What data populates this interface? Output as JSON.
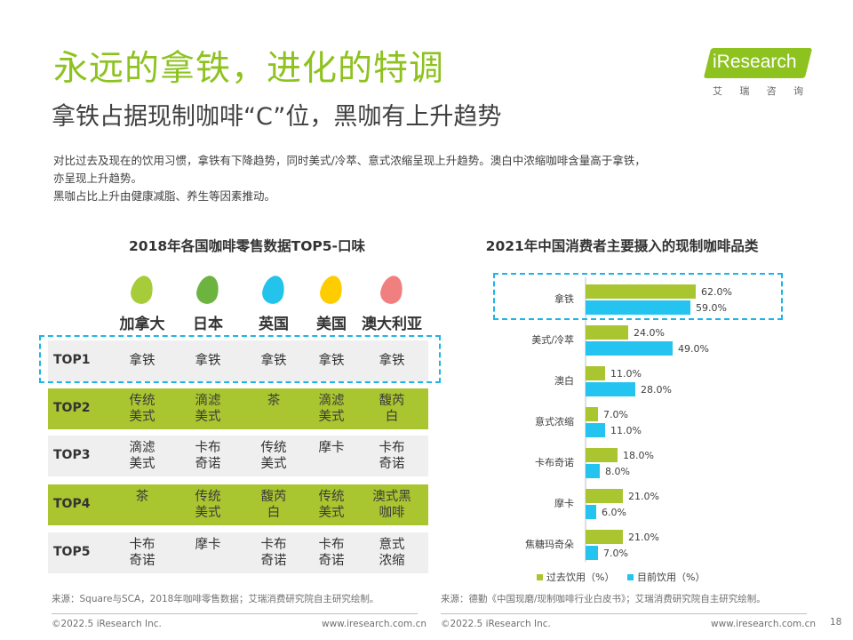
{
  "header": {
    "title": "永远的拿铁，进化的特调",
    "subtitle": "拿铁占据现制咖啡“C”位，黑咖有上升趋势",
    "summary_lines": [
      "对比过去及现在的饮用习惯，拿铁有下降趋势，同时美式/冷萃、意式浓缩呈现上升趋势。澳白中浓缩咖啡含量高于拿铁，",
      "亦呈现上升趋势。",
      "黑咖占比上升由健康减脂、养生等因素推动。"
    ]
  },
  "logo": {
    "text": "iResearch",
    "chars": [
      "艾",
      "瑞",
      "咨",
      "询"
    ]
  },
  "left": {
    "title": "2018年各国咖啡零售数据TOP5-口味",
    "countries": [
      {
        "name": "加拿大",
        "color": "#a7cc3a"
      },
      {
        "name": "日本",
        "color": "#6db33f"
      },
      {
        "name": "英国",
        "color": "#23c3ec"
      },
      {
        "name": "美国",
        "color": "#ffcc00"
      },
      {
        "name": "澳大利亚",
        "color": "#f08080"
      }
    ],
    "rows": [
      {
        "rank": "TOP1",
        "style": "gray",
        "cells": [
          "拿铁",
          "拿铁",
          "拿铁",
          "拿铁",
          "拿铁"
        ]
      },
      {
        "rank": "TOP2",
        "style": "green",
        "cells": [
          "传统\n美式",
          "滴滤\n美式",
          "茶",
          "滴滤\n美式",
          "馥芮\n白"
        ]
      },
      {
        "rank": "TOP3",
        "style": "gray",
        "cells": [
          "滴滤\n美式",
          "卡布\n奇诺",
          "传统\n美式",
          "摩卡",
          "卡布\n奇诺"
        ]
      },
      {
        "rank": "TOP4",
        "style": "green",
        "cells": [
          "茶",
          "传统\n美式",
          "馥芮\n白",
          "传统\n美式",
          "澳式黑\n咖啡"
        ]
      },
      {
        "rank": "TOP5",
        "style": "gray",
        "cells": [
          "卡布\n奇诺",
          "摩卡",
          "卡布\n奇诺",
          "卡布\n奇诺",
          "意式\n浓缩"
        ]
      }
    ],
    "source": "来源：Square与SCA，2018年咖啡零售数据；艾瑞消费研究院自主研究绘制。",
    "footer_left": "©2022.5 iResearch Inc.",
    "footer_right": "www.iresearch.com.cn"
  },
  "right": {
    "title": "2021年中国消费者主要摄入的现制咖啡品类",
    "source": "来源：德勤《中国现磨/现制咖啡行业白皮书》；艾瑞消费研究院自主研究绘制。",
    "footer_left": "©2022.5 iResearch Inc.",
    "footer_right": "www.iresearch.com.cn"
  },
  "page_number": "18",
  "colors": {
    "accent_green": "#8dc21f",
    "bar_past": "#a9c52f",
    "bar_now": "#25c4f0",
    "highlight": "#1fb4e6"
  },
  "chart_data": {
    "type": "bar",
    "orientation": "horizontal",
    "title": "2021年中国消费者主要摄入的现制咖啡品类",
    "categories": [
      "拿铁",
      "美式/冷萃",
      "澳白",
      "意式浓缩",
      "卡布奇诺",
      "摩卡",
      "焦糖玛奇朵"
    ],
    "series": [
      {
        "name": "过去饮用（%）",
        "color": "#a9c52f",
        "values": [
          62.0,
          24.0,
          11.0,
          7.0,
          18.0,
          21.0,
          21.0
        ]
      },
      {
        "name": "目前饮用（%）",
        "color": "#25c4f0",
        "values": [
          59.0,
          49.0,
          28.0,
          11.0,
          8.0,
          6.0,
          7.0
        ]
      }
    ],
    "unit": "%",
    "xlim": [
      0,
      100
    ],
    "legend_position": "bottom",
    "grid": false
  }
}
